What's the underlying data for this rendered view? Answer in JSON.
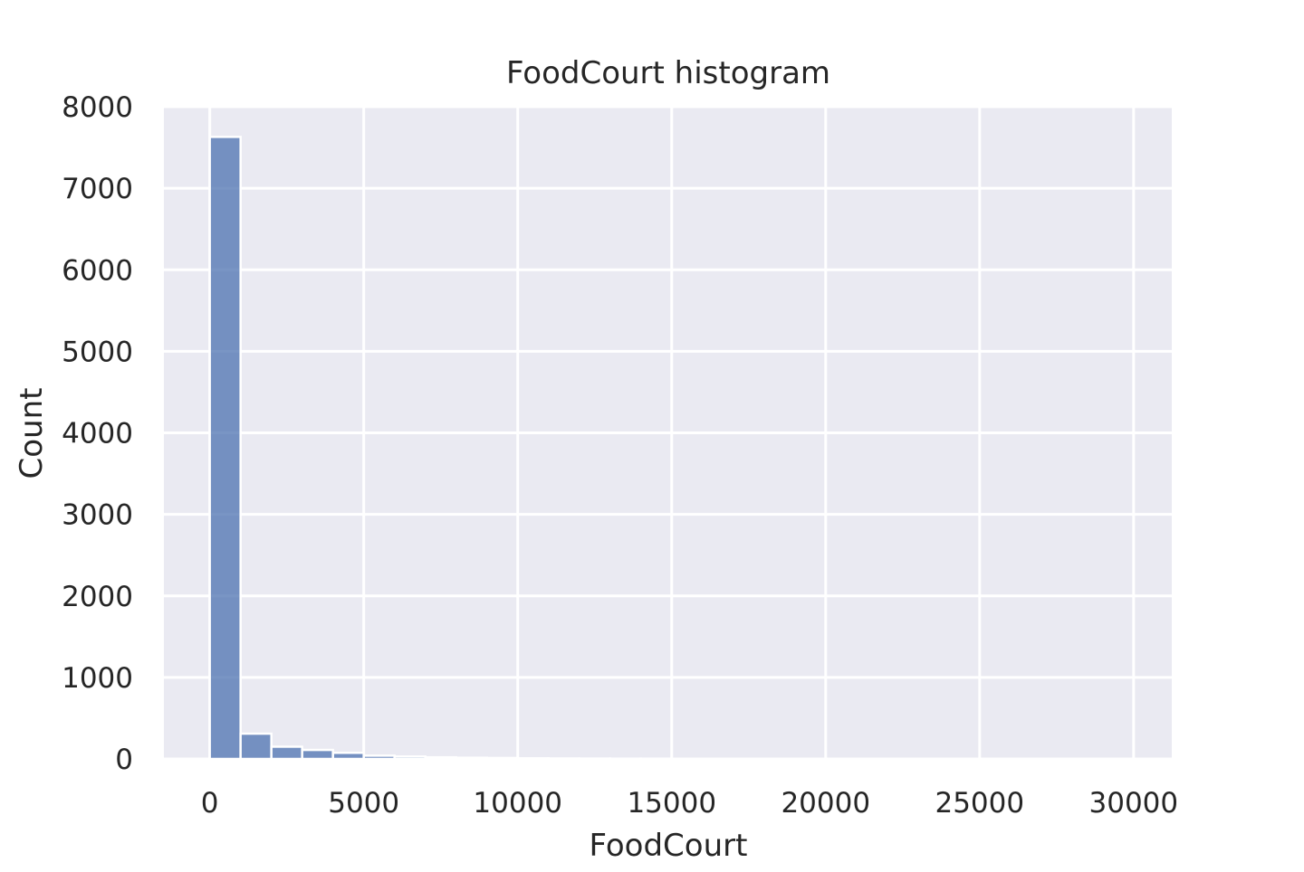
{
  "chart_data": {
    "type": "bar",
    "title": "FoodCourt histogram",
    "xlabel": "FoodCourt",
    "ylabel": "Count",
    "xlim": [
      -1490,
      31240
    ],
    "ylim": [
      0,
      8000
    ],
    "x_ticks": [
      0,
      5000,
      10000,
      15000,
      20000,
      25000,
      30000
    ],
    "y_ticks": [
      0,
      1000,
      2000,
      3000,
      4000,
      5000,
      6000,
      7000,
      8000
    ],
    "bin_width": 1000,
    "bin_edges": [
      0,
      1000,
      2000,
      3000,
      4000,
      5000,
      6000,
      7000,
      8000,
      9000,
      10000,
      11000,
      12000,
      13000,
      14000,
      15000,
      16000,
      17000,
      18000,
      19000,
      20000,
      21000,
      22000,
      23000,
      24000,
      25000,
      26000,
      27000,
      28000,
      29000,
      30000
    ],
    "values": [
      7630,
      310,
      150,
      110,
      75,
      40,
      30,
      20,
      15,
      12,
      8,
      6,
      5,
      4,
      4,
      3,
      2,
      2,
      2,
      2,
      1,
      1,
      1,
      1,
      1,
      1,
      1,
      1,
      1,
      1
    ],
    "grid": true,
    "colors": {
      "plot_background": "#eaeaf2",
      "bar_fill": "#4c72b0",
      "bar_opacity": 0.75,
      "bar_edge": "#ffffff",
      "grid": "#ffffff",
      "text": "#262626"
    }
  }
}
